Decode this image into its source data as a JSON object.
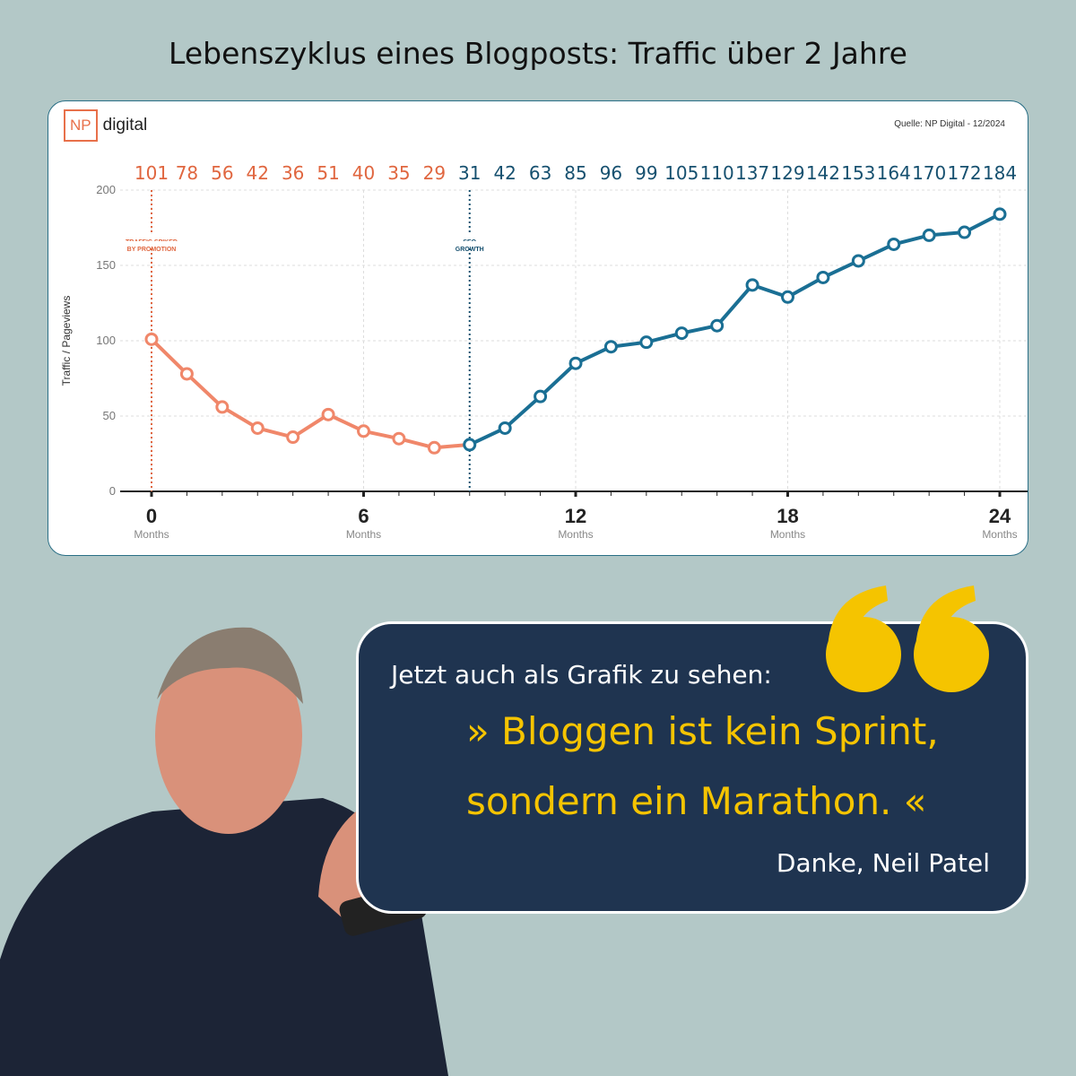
{
  "title": "Lebenszyklus eines Blogposts: Traffic über 2 Jahre",
  "logo": {
    "box": "NP",
    "text": "digital",
    "color": "#e8704a"
  },
  "source": "Quelle: NP Digital - 12/2024",
  "chart_data": {
    "type": "line",
    "ylabel": "Traffic / Pageviews",
    "ylim": [
      0,
      200
    ],
    "yticks": [
      0,
      50,
      100,
      150,
      200
    ],
    "xlim": [
      0,
      24
    ],
    "xticks": [
      {
        "value": 0,
        "label": "0",
        "sub": "Months"
      },
      {
        "value": 6,
        "label": "6",
        "sub": "Months"
      },
      {
        "value": 12,
        "label": "12",
        "sub": "Months"
      },
      {
        "value": 18,
        "label": "18",
        "sub": "Months"
      },
      {
        "value": 24,
        "label": "24",
        "sub": "Months"
      }
    ],
    "x": [
      0,
      1,
      2,
      3,
      4,
      5,
      6,
      7,
      8,
      9,
      10,
      11,
      12,
      13,
      14,
      15,
      16,
      17,
      18,
      19,
      20,
      21,
      22,
      23,
      24
    ],
    "values": [
      101,
      78,
      56,
      42,
      36,
      51,
      40,
      35,
      29,
      31,
      42,
      63,
      85,
      96,
      99,
      105,
      110,
      137,
      129,
      142,
      153,
      164,
      170,
      172,
      184
    ],
    "segments": [
      {
        "from": 0,
        "to": 9,
        "color": "#f0876a",
        "label_color": "#e0663f"
      },
      {
        "from": 9,
        "to": 24,
        "color": "#1a6f94",
        "label_color": "#16506f"
      }
    ],
    "annotations": [
      {
        "x": 0,
        "lines": [
          "TRAFFIC SPIKED",
          "BY PROMOTION"
        ],
        "color": "#e0663f"
      },
      {
        "x": 9,
        "lines": [
          "SEO",
          "GROWTH"
        ],
        "color": "#16506f"
      }
    ],
    "grid": true
  },
  "quote": {
    "intro": "Jetzt auch als Grafik zu sehen:",
    "line1": "» Bloggen ist kein Sprint,",
    "line2": "sondern ein Marathon. «",
    "author": "Danke, Neil Patel",
    "accent": "#f5c400"
  }
}
